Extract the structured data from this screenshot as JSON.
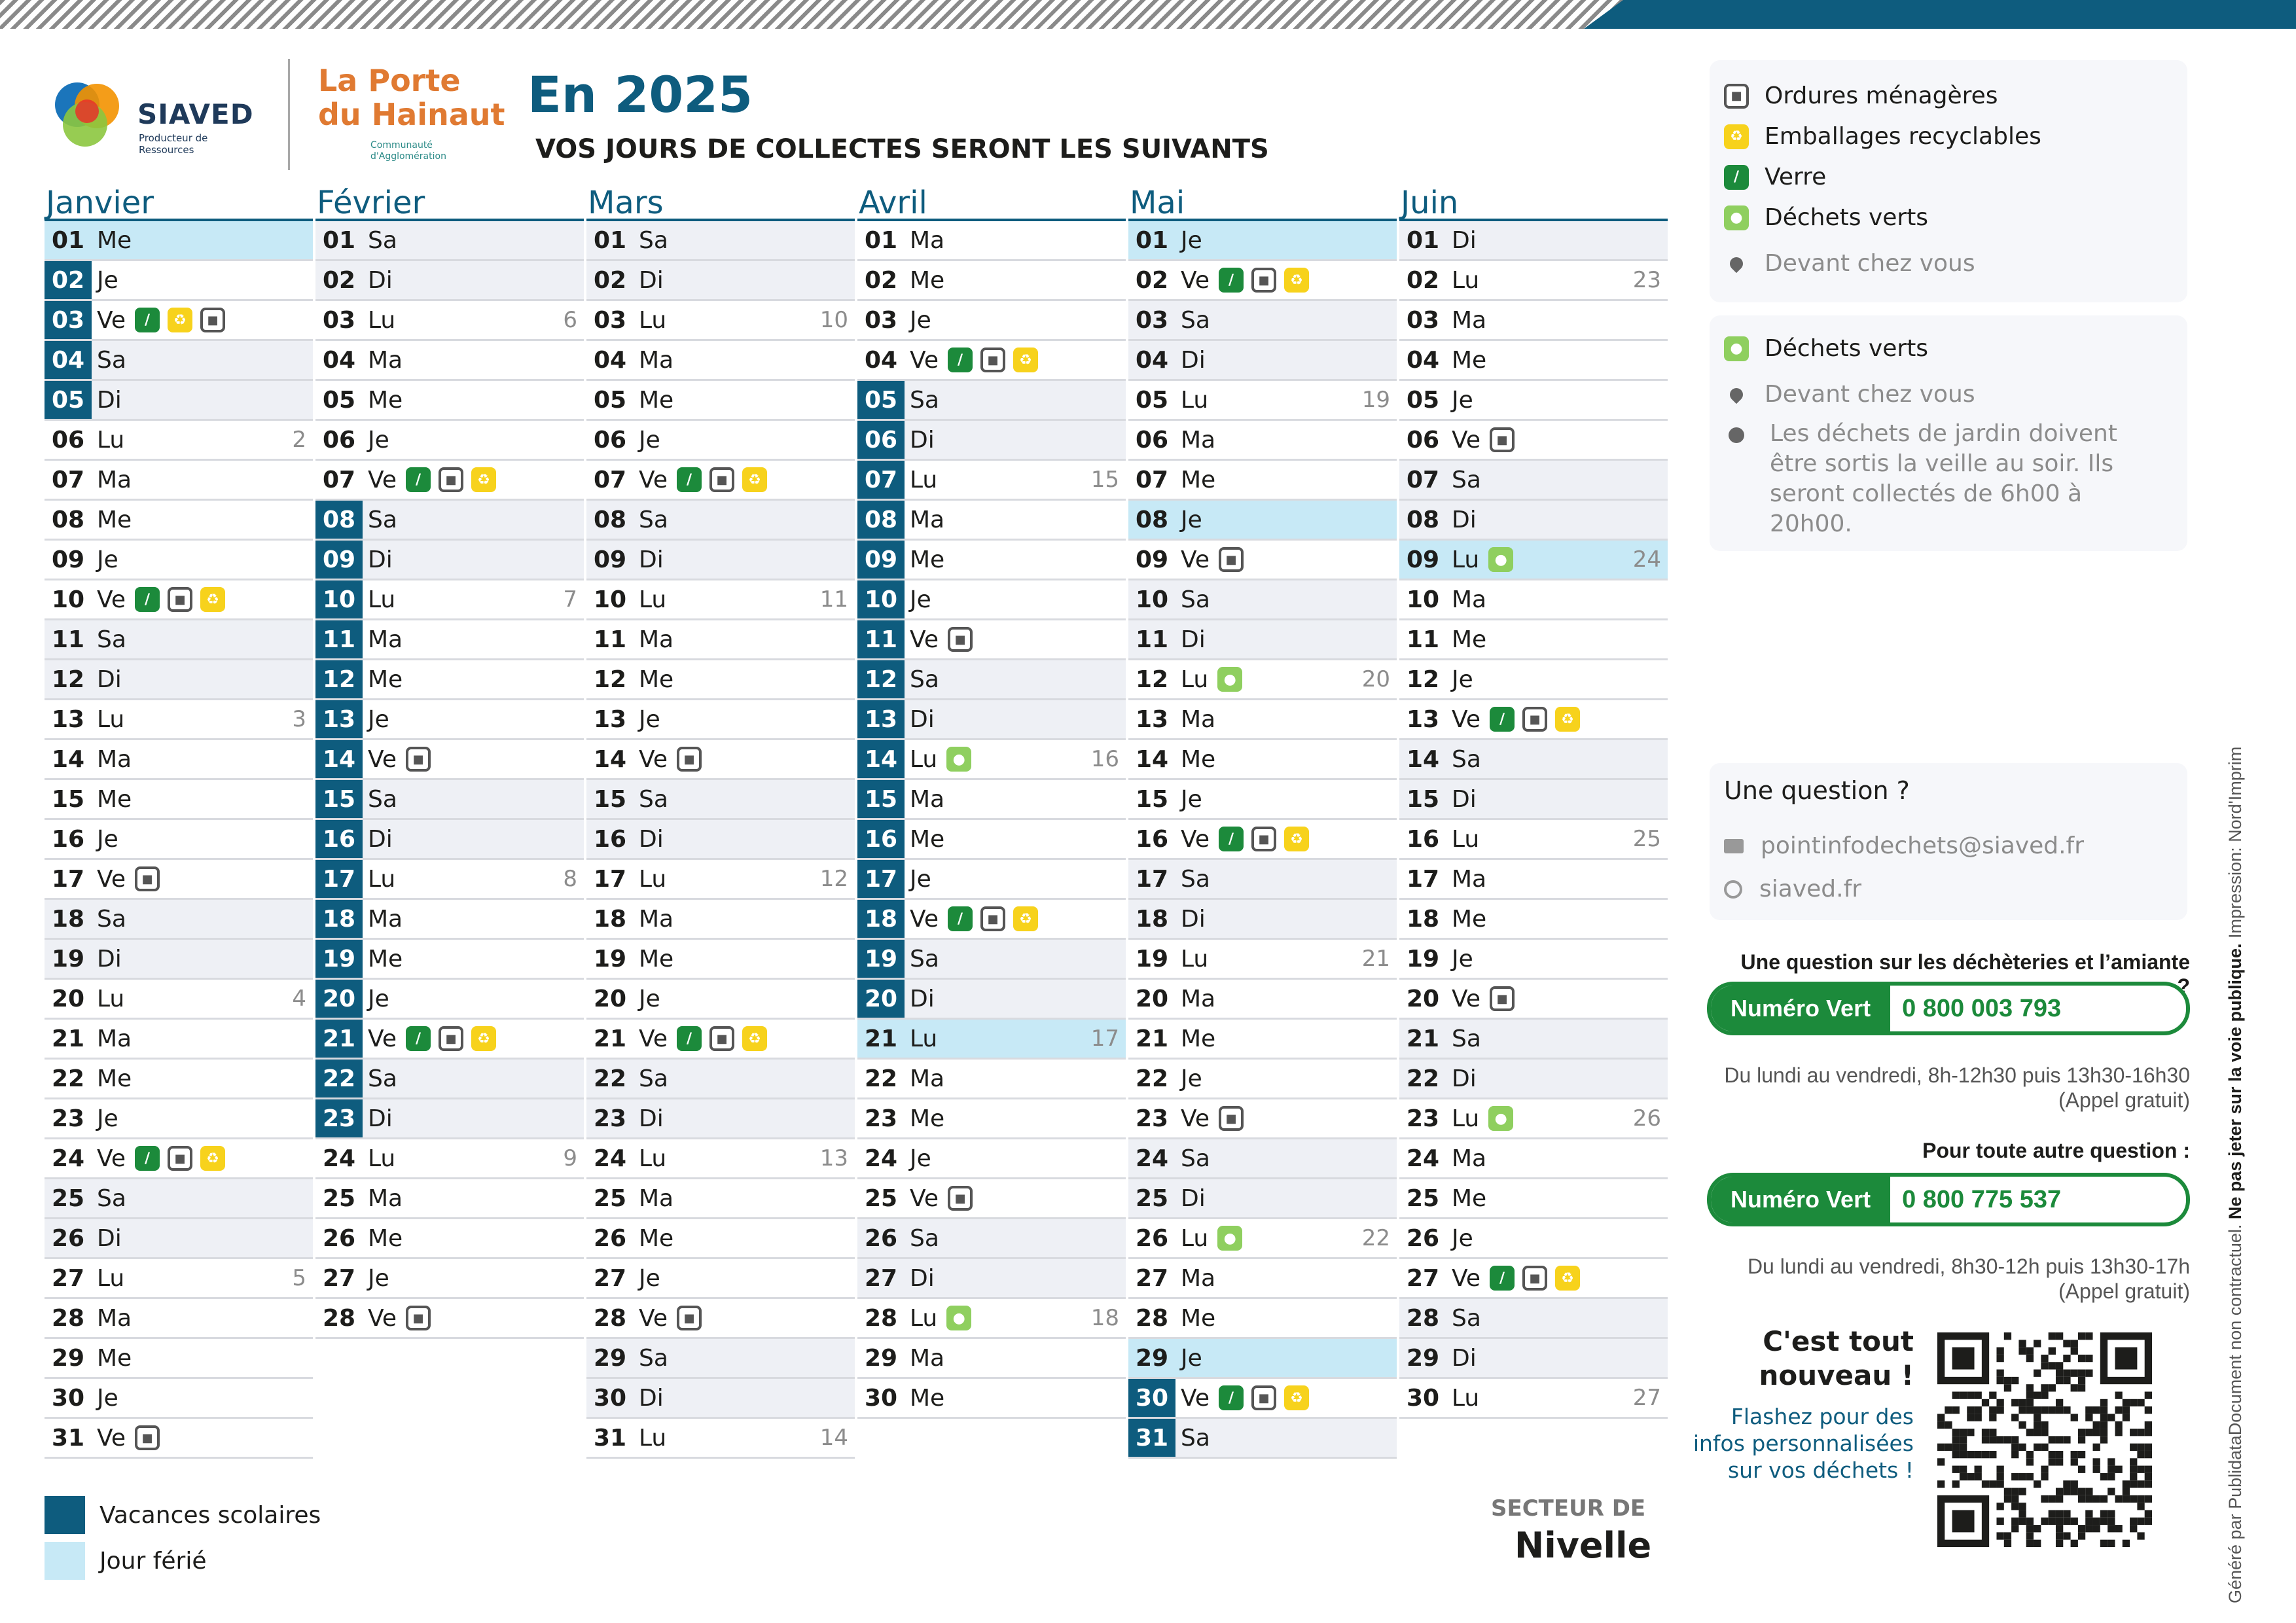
{
  "header": {
    "siaved_name": "SIAVED",
    "siaved_tagline": "Producteur de Ressources",
    "porte_line1": "La Porte",
    "porte_line2": "du Hainaut",
    "porte_line3": "Communauté d'Agglomération",
    "title": "En 2025",
    "subtitle": "VOS JOURS DE COLLECTES SERONT LES SUIVANTS"
  },
  "colors": {
    "vacances": "#0e5c7e",
    "ferie": "#c7e9f6",
    "verre": "#1c8a3b",
    "emballages": "#f7d21c",
    "dechets_verts": "#8fcf5f"
  },
  "icon_names": {
    "om": "ordures-bin-icon",
    "emb": "recycle-icon",
    "verre": "bottle-icon",
    "vert": "leaf-icon"
  },
  "months": [
    {
      "name": "Janvier",
      "days": [
        {
          "n": "01",
          "d": "Me",
          "f": 1
        },
        {
          "n": "02",
          "d": "Je",
          "v": 1
        },
        {
          "n": "03",
          "d": "Ve",
          "v": 1,
          "i": [
            "verre",
            "emb",
            "om"
          ]
        },
        {
          "n": "04",
          "d": "Sa",
          "v": 1,
          "w": 1
        },
        {
          "n": "05",
          "d": "Di",
          "v": 1,
          "w": 1
        },
        {
          "n": "06",
          "d": "Lu",
          "k": "2"
        },
        {
          "n": "07",
          "d": "Ma"
        },
        {
          "n": "08",
          "d": "Me"
        },
        {
          "n": "09",
          "d": "Je"
        },
        {
          "n": "10",
          "d": "Ve",
          "i": [
            "verre",
            "om",
            "emb"
          ]
        },
        {
          "n": "11",
          "d": "Sa",
          "w": 1
        },
        {
          "n": "12",
          "d": "Di",
          "w": 1
        },
        {
          "n": "13",
          "d": "Lu",
          "k": "3"
        },
        {
          "n": "14",
          "d": "Ma"
        },
        {
          "n": "15",
          "d": "Me"
        },
        {
          "n": "16",
          "d": "Je"
        },
        {
          "n": "17",
          "d": "Ve",
          "i": [
            "om"
          ]
        },
        {
          "n": "18",
          "d": "Sa",
          "w": 1
        },
        {
          "n": "19",
          "d": "Di",
          "w": 1
        },
        {
          "n": "20",
          "d": "Lu",
          "k": "4"
        },
        {
          "n": "21",
          "d": "Ma"
        },
        {
          "n": "22",
          "d": "Me"
        },
        {
          "n": "23",
          "d": "Je"
        },
        {
          "n": "24",
          "d": "Ve",
          "i": [
            "verre",
            "om",
            "emb"
          ]
        },
        {
          "n": "25",
          "d": "Sa",
          "w": 1
        },
        {
          "n": "26",
          "d": "Di",
          "w": 1
        },
        {
          "n": "27",
          "d": "Lu",
          "k": "5"
        },
        {
          "n": "28",
          "d": "Ma"
        },
        {
          "n": "29",
          "d": "Me"
        },
        {
          "n": "30",
          "d": "Je"
        },
        {
          "n": "31",
          "d": "Ve",
          "i": [
            "om"
          ]
        }
      ]
    },
    {
      "name": "Février",
      "days": [
        {
          "n": "01",
          "d": "Sa",
          "w": 1
        },
        {
          "n": "02",
          "d": "Di",
          "w": 1
        },
        {
          "n": "03",
          "d": "Lu",
          "k": "6"
        },
        {
          "n": "04",
          "d": "Ma"
        },
        {
          "n": "05",
          "d": "Me"
        },
        {
          "n": "06",
          "d": "Je"
        },
        {
          "n": "07",
          "d": "Ve",
          "i": [
            "verre",
            "om",
            "emb"
          ]
        },
        {
          "n": "08",
          "d": "Sa",
          "v": 1,
          "w": 1
        },
        {
          "n": "09",
          "d": "Di",
          "v": 1,
          "w": 1
        },
        {
          "n": "10",
          "d": "Lu",
          "v": 1,
          "k": "7"
        },
        {
          "n": "11",
          "d": "Ma",
          "v": 1
        },
        {
          "n": "12",
          "d": "Me",
          "v": 1
        },
        {
          "n": "13",
          "d": "Je",
          "v": 1
        },
        {
          "n": "14",
          "d": "Ve",
          "v": 1,
          "i": [
            "om"
          ]
        },
        {
          "n": "15",
          "d": "Sa",
          "v": 1,
          "w": 1
        },
        {
          "n": "16",
          "d": "Di",
          "v": 1,
          "w": 1
        },
        {
          "n": "17",
          "d": "Lu",
          "v": 1,
          "k": "8"
        },
        {
          "n": "18",
          "d": "Ma",
          "v": 1
        },
        {
          "n": "19",
          "d": "Me",
          "v": 1
        },
        {
          "n": "20",
          "d": "Je",
          "v": 1
        },
        {
          "n": "21",
          "d": "Ve",
          "v": 1,
          "i": [
            "verre",
            "om",
            "emb"
          ]
        },
        {
          "n": "22",
          "d": "Sa",
          "v": 1,
          "w": 1
        },
        {
          "n": "23",
          "d": "Di",
          "v": 1,
          "w": 1
        },
        {
          "n": "24",
          "d": "Lu",
          "k": "9"
        },
        {
          "n": "25",
          "d": "Ma"
        },
        {
          "n": "26",
          "d": "Me"
        },
        {
          "n": "27",
          "d": "Je"
        },
        {
          "n": "28",
          "d": "Ve",
          "i": [
            "om"
          ]
        }
      ]
    },
    {
      "name": "Mars",
      "days": [
        {
          "n": "01",
          "d": "Sa",
          "w": 1
        },
        {
          "n": "02",
          "d": "Di",
          "w": 1
        },
        {
          "n": "03",
          "d": "Lu",
          "k": "10"
        },
        {
          "n": "04",
          "d": "Ma"
        },
        {
          "n": "05",
          "d": "Me"
        },
        {
          "n": "06",
          "d": "Je"
        },
        {
          "n": "07",
          "d": "Ve",
          "i": [
            "verre",
            "om",
            "emb"
          ]
        },
        {
          "n": "08",
          "d": "Sa",
          "w": 1
        },
        {
          "n": "09",
          "d": "Di",
          "w": 1
        },
        {
          "n": "10",
          "d": "Lu",
          "k": "11"
        },
        {
          "n": "11",
          "d": "Ma"
        },
        {
          "n": "12",
          "d": "Me"
        },
        {
          "n": "13",
          "d": "Je"
        },
        {
          "n": "14",
          "d": "Ve",
          "i": [
            "om"
          ]
        },
        {
          "n": "15",
          "d": "Sa",
          "w": 1
        },
        {
          "n": "16",
          "d": "Di",
          "w": 1
        },
        {
          "n": "17",
          "d": "Lu",
          "k": "12"
        },
        {
          "n": "18",
          "d": "Ma"
        },
        {
          "n": "19",
          "d": "Me"
        },
        {
          "n": "20",
          "d": "Je"
        },
        {
          "n": "21",
          "d": "Ve",
          "i": [
            "verre",
            "om",
            "emb"
          ]
        },
        {
          "n": "22",
          "d": "Sa",
          "w": 1
        },
        {
          "n": "23",
          "d": "Di",
          "w": 1
        },
        {
          "n": "24",
          "d": "Lu",
          "k": "13"
        },
        {
          "n": "25",
          "d": "Ma"
        },
        {
          "n": "26",
          "d": "Me"
        },
        {
          "n": "27",
          "d": "Je"
        },
        {
          "n": "28",
          "d": "Ve",
          "i": [
            "om"
          ]
        },
        {
          "n": "29",
          "d": "Sa",
          "w": 1
        },
        {
          "n": "30",
          "d": "Di",
          "w": 1
        },
        {
          "n": "31",
          "d": "Lu",
          "k": "14"
        }
      ]
    },
    {
      "name": "Avril",
      "days": [
        {
          "n": "01",
          "d": "Ma"
        },
        {
          "n": "02",
          "d": "Me"
        },
        {
          "n": "03",
          "d": "Je"
        },
        {
          "n": "04",
          "d": "Ve",
          "i": [
            "verre",
            "om",
            "emb"
          ]
        },
        {
          "n": "05",
          "d": "Sa",
          "v": 1,
          "w": 1
        },
        {
          "n": "06",
          "d": "Di",
          "v": 1,
          "w": 1
        },
        {
          "n": "07",
          "d": "Lu",
          "v": 1,
          "k": "15"
        },
        {
          "n": "08",
          "d": "Ma",
          "v": 1
        },
        {
          "n": "09",
          "d": "Me",
          "v": 1
        },
        {
          "n": "10",
          "d": "Je",
          "v": 1
        },
        {
          "n": "11",
          "d": "Ve",
          "v": 1,
          "i": [
            "om"
          ]
        },
        {
          "n": "12",
          "d": "Sa",
          "v": 1,
          "w": 1
        },
        {
          "n": "13",
          "d": "Di",
          "v": 1,
          "w": 1
        },
        {
          "n": "14",
          "d": "Lu",
          "v": 1,
          "k": "16",
          "i": [
            "vert"
          ]
        },
        {
          "n": "15",
          "d": "Ma",
          "v": 1
        },
        {
          "n": "16",
          "d": "Me",
          "v": 1
        },
        {
          "n": "17",
          "d": "Je",
          "v": 1
        },
        {
          "n": "18",
          "d": "Ve",
          "v": 1,
          "i": [
            "verre",
            "om",
            "emb"
          ]
        },
        {
          "n": "19",
          "d": "Sa",
          "v": 1,
          "w": 1
        },
        {
          "n": "20",
          "d": "Di",
          "v": 1,
          "w": 1
        },
        {
          "n": "21",
          "d": "Lu",
          "f": 1,
          "k": "17"
        },
        {
          "n": "22",
          "d": "Ma"
        },
        {
          "n": "23",
          "d": "Me"
        },
        {
          "n": "24",
          "d": "Je"
        },
        {
          "n": "25",
          "d": "Ve",
          "i": [
            "om"
          ]
        },
        {
          "n": "26",
          "d": "Sa",
          "w": 1
        },
        {
          "n": "27",
          "d": "Di",
          "w": 1
        },
        {
          "n": "28",
          "d": "Lu",
          "k": "18",
          "i": [
            "vert"
          ]
        },
        {
          "n": "29",
          "d": "Ma"
        },
        {
          "n": "30",
          "d": "Me"
        }
      ]
    },
    {
      "name": "Mai",
      "days": [
        {
          "n": "01",
          "d": "Je",
          "f": 1
        },
        {
          "n": "02",
          "d": "Ve",
          "i": [
            "verre",
            "om",
            "emb"
          ]
        },
        {
          "n": "03",
          "d": "Sa",
          "w": 1
        },
        {
          "n": "04",
          "d": "Di",
          "w": 1
        },
        {
          "n": "05",
          "d": "Lu",
          "k": "19"
        },
        {
          "n": "06",
          "d": "Ma"
        },
        {
          "n": "07",
          "d": "Me"
        },
        {
          "n": "08",
          "d": "Je",
          "f": 1
        },
        {
          "n": "09",
          "d": "Ve",
          "i": [
            "om"
          ]
        },
        {
          "n": "10",
          "d": "Sa",
          "w": 1
        },
        {
          "n": "11",
          "d": "Di",
          "w": 1
        },
        {
          "n": "12",
          "d": "Lu",
          "k": "20",
          "i": [
            "vert"
          ]
        },
        {
          "n": "13",
          "d": "Ma"
        },
        {
          "n": "14",
          "d": "Me"
        },
        {
          "n": "15",
          "d": "Je"
        },
        {
          "n": "16",
          "d": "Ve",
          "i": [
            "verre",
            "om",
            "emb"
          ]
        },
        {
          "n": "17",
          "d": "Sa",
          "w": 1
        },
        {
          "n": "18",
          "d": "Di",
          "w": 1
        },
        {
          "n": "19",
          "d": "Lu",
          "k": "21"
        },
        {
          "n": "20",
          "d": "Ma"
        },
        {
          "n": "21",
          "d": "Me"
        },
        {
          "n": "22",
          "d": "Je"
        },
        {
          "n": "23",
          "d": "Ve",
          "i": [
            "om"
          ]
        },
        {
          "n": "24",
          "d": "Sa",
          "w": 1
        },
        {
          "n": "25",
          "d": "Di",
          "w": 1
        },
        {
          "n": "26",
          "d": "Lu",
          "k": "22",
          "i": [
            "vert"
          ]
        },
        {
          "n": "27",
          "d": "Ma"
        },
        {
          "n": "28",
          "d": "Me"
        },
        {
          "n": "29",
          "d": "Je",
          "f": 1
        },
        {
          "n": "30",
          "d": "Ve",
          "v": 1,
          "i": [
            "verre",
            "om",
            "emb"
          ]
        },
        {
          "n": "31",
          "d": "Sa",
          "v": 1,
          "w": 1
        }
      ]
    },
    {
      "name": "Juin",
      "days": [
        {
          "n": "01",
          "d": "Di",
          "w": 1
        },
        {
          "n": "02",
          "d": "Lu",
          "k": "23"
        },
        {
          "n": "03",
          "d": "Ma"
        },
        {
          "n": "04",
          "d": "Me"
        },
        {
          "n": "05",
          "d": "Je"
        },
        {
          "n": "06",
          "d": "Ve",
          "i": [
            "om"
          ]
        },
        {
          "n": "07",
          "d": "Sa",
          "w": 1
        },
        {
          "n": "08",
          "d": "Di",
          "w": 1
        },
        {
          "n": "09",
          "d": "Lu",
          "f": 1,
          "k": "24",
          "i": [
            "vert"
          ]
        },
        {
          "n": "10",
          "d": "Ma"
        },
        {
          "n": "11",
          "d": "Me"
        },
        {
          "n": "12",
          "d": "Je"
        },
        {
          "n": "13",
          "d": "Ve",
          "i": [
            "verre",
            "om",
            "emb"
          ]
        },
        {
          "n": "14",
          "d": "Sa",
          "w": 1
        },
        {
          "n": "15",
          "d": "Di",
          "w": 1
        },
        {
          "n": "16",
          "d": "Lu",
          "k": "25"
        },
        {
          "n": "17",
          "d": "Ma"
        },
        {
          "n": "18",
          "d": "Me"
        },
        {
          "n": "19",
          "d": "Je"
        },
        {
          "n": "20",
          "d": "Ve",
          "i": [
            "om"
          ]
        },
        {
          "n": "21",
          "d": "Sa",
          "w": 1
        },
        {
          "n": "22",
          "d": "Di",
          "w": 1
        },
        {
          "n": "23",
          "d": "Lu",
          "k": "26",
          "i": [
            "vert"
          ]
        },
        {
          "n": "24",
          "d": "Ma"
        },
        {
          "n": "25",
          "d": "Me"
        },
        {
          "n": "26",
          "d": "Je"
        },
        {
          "n": "27",
          "d": "Ve",
          "i": [
            "verre",
            "om",
            "emb"
          ]
        },
        {
          "n": "28",
          "d": "Sa",
          "w": 1
        },
        {
          "n": "29",
          "d": "Di",
          "w": 1
        },
        {
          "n": "30",
          "d": "Lu",
          "k": "27"
        }
      ]
    }
  ],
  "legend": {
    "vacances": "Vacances scolaires",
    "ferie": "Jour férié"
  },
  "secteur": {
    "label": "SECTEUR DE",
    "name": "Nivelle"
  },
  "panel_legend": {
    "om": "Ordures ménagères",
    "emb": "Emballages recyclables",
    "verre": "Verre",
    "vert": "Déchets verts",
    "devant": "Devant chez vous"
  },
  "panel_vert": {
    "title": "Déchets verts",
    "devant": "Devant chez vous",
    "note": "Les déchets de jardin doivent être sortis la veille au soir. Ils seront collectés de 6h00 à 20h00."
  },
  "question": {
    "title": "Une question ?",
    "email": "pointinfodechets@siaved.fr",
    "site": "siaved.fr",
    "q_decheterie": "Une question sur les déchèteries et l’amiante ?",
    "nv_label": "Numéro Vert",
    "nv1_number": "0 800 003 793",
    "nv1_hours": "Du lundi au vendredi, 8h-12h30 puis 13h30-16h30",
    "nv1_free": "(Appel gratuit)",
    "q_other": "Pour toute autre question :",
    "nv2_number": "0 800 775 537",
    "nv2_hours": "Du lundi au vendredi, 8h30-12h puis 13h30-17h",
    "nv2_free": "(Appel gratuit)"
  },
  "new": {
    "title": "C'est tout nouveau !",
    "text": "Flashez pour des infos personnalisées sur vos déchets !"
  },
  "side": {
    "generated": "Généré par",
    "brand": "Publidata",
    "doc": "Document non contractuel.",
    "bold": "Ne pas jeter sur la voie publique.",
    "print": "Impression: Nord'Imprim"
  }
}
